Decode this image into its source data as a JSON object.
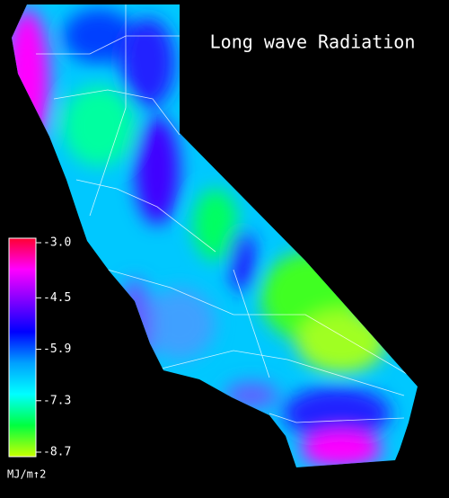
{
  "map": {
    "title": "Long wave Radiation",
    "colorbar": {
      "label": "MJ/m↑2",
      "range": [
        -8.7,
        -3.0
      ],
      "ticks": [
        {
          "value": -3.0,
          "label": "-3.0"
        },
        -4.5,
        -5.9,
        -7.3,
        -8.7
      ],
      "colors": [
        "#ff0030",
        "#ff00ff",
        "#8000ff",
        "#0000ff",
        "#00a0ff",
        "#00ffff",
        "#00ff40",
        "#c8ff00"
      ]
    }
  }
}
